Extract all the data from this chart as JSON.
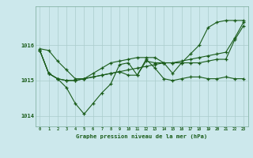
{
  "background_color": "#cce8ec",
  "grid_color": "#aacccc",
  "line_color": "#1a5c1a",
  "xlabel": "Graphe pression niveau de la mer (hPa)",
  "ylim": [
    1013.7,
    1017.1
  ],
  "yticks": [
    1014,
    1015,
    1016
  ],
  "xlim": [
    -0.5,
    23.5
  ],
  "xticks": [
    0,
    1,
    2,
    3,
    4,
    5,
    6,
    7,
    8,
    9,
    10,
    11,
    12,
    13,
    14,
    15,
    16,
    17,
    18,
    19,
    20,
    21,
    22,
    23
  ],
  "series1": [
    1015.9,
    1015.85,
    1015.55,
    1015.3,
    1015.05,
    1015.05,
    1015.1,
    1015.15,
    1015.2,
    1015.25,
    1015.3,
    1015.35,
    1015.4,
    1015.45,
    1015.5,
    1015.5,
    1015.55,
    1015.6,
    1015.65,
    1015.7,
    1015.75,
    1015.8,
    1016.2,
    1016.65
  ],
  "series2": [
    1015.85,
    1015.2,
    1015.05,
    1014.8,
    1014.35,
    1014.05,
    1014.35,
    1014.65,
    1014.9,
    1015.45,
    1015.5,
    1015.15,
    1015.6,
    1015.35,
    1015.05,
    1015.0,
    1015.05,
    1015.1,
    1015.1,
    1015.05,
    1015.05,
    1015.1,
    1015.05,
    1015.05
  ],
  "series3": [
    1015.85,
    1015.2,
    1015.05,
    1015.0,
    1015.0,
    1015.05,
    1015.1,
    1015.15,
    1015.2,
    1015.25,
    1015.15,
    1015.15,
    1015.55,
    1015.5,
    1015.5,
    1015.5,
    1015.5,
    1015.5,
    1015.5,
    1015.55,
    1015.6,
    1015.6,
    1016.15,
    1016.55
  ],
  "series4": [
    1015.85,
    1015.2,
    1015.05,
    1015.0,
    1015.0,
    1015.05,
    1015.2,
    1015.35,
    1015.5,
    1015.55,
    1015.6,
    1015.65,
    1015.65,
    1015.65,
    1015.5,
    1015.2,
    1015.5,
    1015.75,
    1016.0,
    1016.5,
    1016.65,
    1016.7,
    1016.7,
    1016.7
  ]
}
